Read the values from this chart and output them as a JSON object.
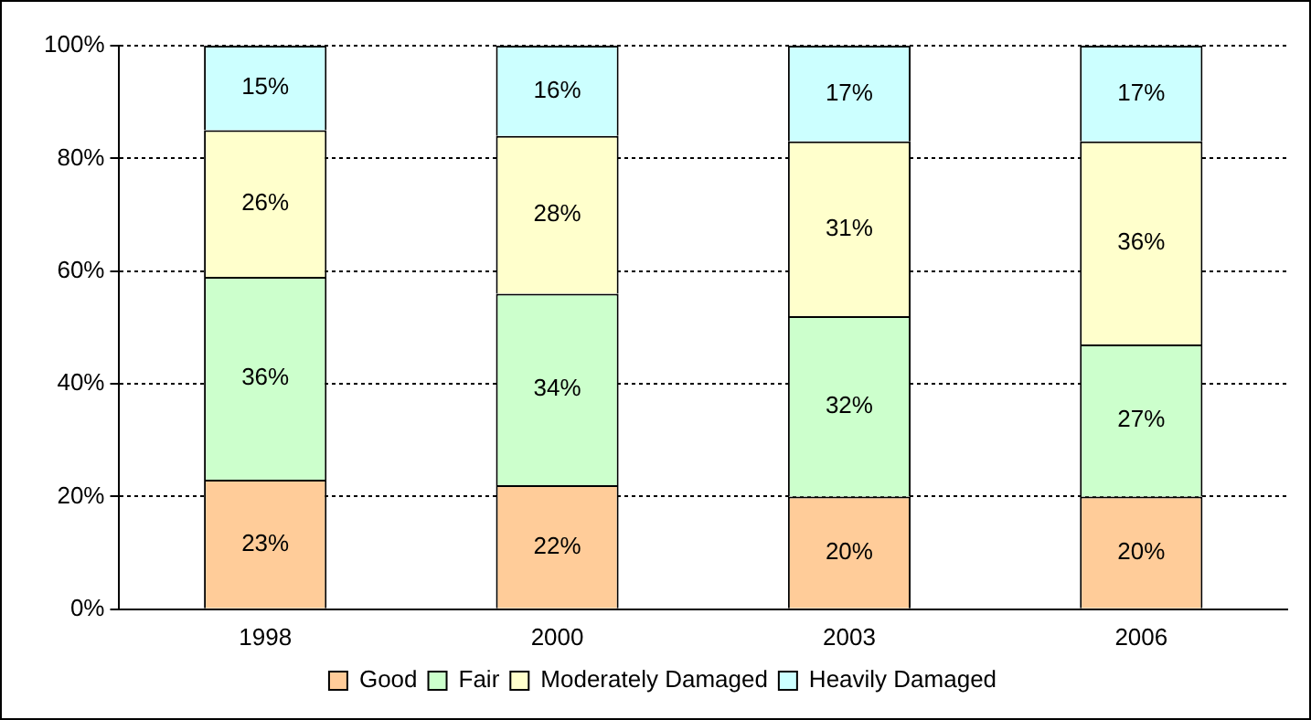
{
  "chart_data": {
    "type": "bar",
    "stacked": true,
    "categories": [
      "1998",
      "2000",
      "2003",
      "2006"
    ],
    "series": [
      {
        "name": "Good",
        "color": "#ffcc99",
        "values": [
          23,
          22,
          20,
          20
        ],
        "value_labels": [
          "23%",
          "22%",
          "20%",
          "20%"
        ]
      },
      {
        "name": "Fair",
        "color": "#ccffcc",
        "values": [
          36,
          34,
          32,
          27
        ],
        "value_labels": [
          "36%",
          "34%",
          "32%",
          "27%"
        ]
      },
      {
        "name": "Moderately Damaged",
        "color": "#ffffcc",
        "values": [
          26,
          28,
          31,
          36
        ],
        "value_labels": [
          "26%",
          "28%",
          "31%",
          "36%"
        ]
      },
      {
        "name": "Heavily Damaged",
        "color": "#ccffff",
        "values": [
          15,
          16,
          17,
          17
        ],
        "value_labels": [
          "15%",
          "16%",
          "17%",
          "17%"
        ]
      }
    ],
    "ylim": [
      0,
      100
    ],
    "yticks": [
      {
        "value": 0,
        "label": "0%"
      },
      {
        "value": 20,
        "label": "20%"
      },
      {
        "value": 40,
        "label": "40%"
      },
      {
        "value": 60,
        "label": "60%"
      },
      {
        "value": 80,
        "label": "80%"
      },
      {
        "value": 100,
        "label": "100%"
      }
    ],
    "grid": "y",
    "legend": "bottom"
  }
}
